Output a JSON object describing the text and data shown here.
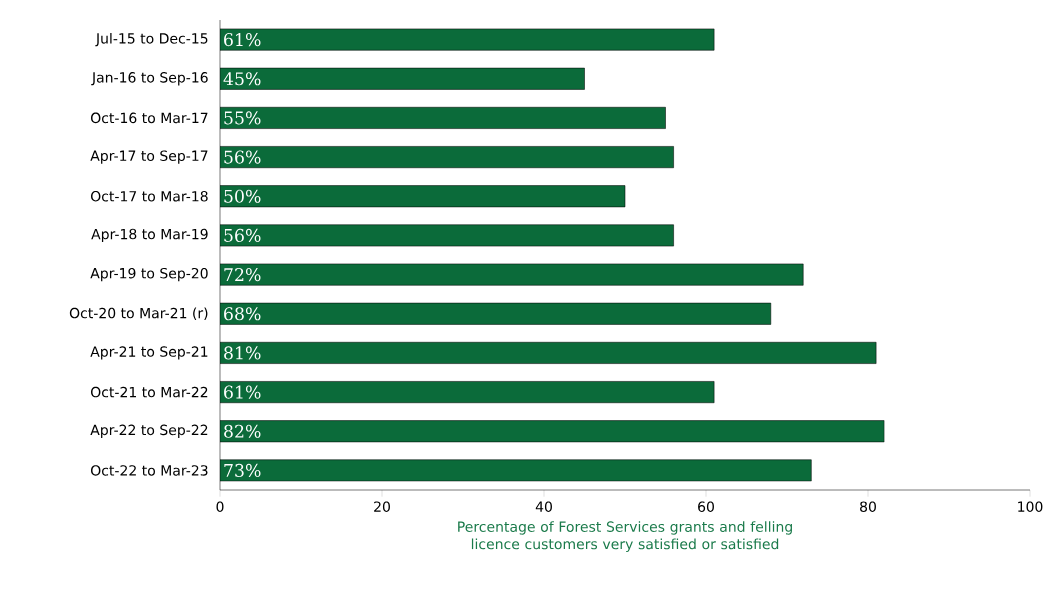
{
  "chart_data": {
    "type": "bar",
    "orientation": "horizontal",
    "categories": [
      "Jul-15 to Dec-15",
      "Jan-16 to Sep-16",
      "Oct-16 to Mar-17",
      "Apr-17 to Sep-17",
      "Oct-17 to Mar-18",
      "Apr-18 to Mar-19",
      "Apr-19 to Sep-20",
      "Oct-20 to Mar-21 (r)",
      "Apr-21 to Sep-21",
      "Oct-21 to Mar-22",
      "Apr-22 to Sep-22",
      "Oct-22 to Mar-23"
    ],
    "values": [
      61,
      45,
      55,
      56,
      50,
      56,
      72,
      68,
      81,
      61,
      82,
      73
    ],
    "value_labels": [
      "61%",
      "45%",
      "55%",
      "56%",
      "50%",
      "56%",
      "72%",
      "68%",
      "81%",
      "61%",
      "82%",
      "73%"
    ],
    "color": "#0b6b3a",
    "xlabel": "Percentage of Forest Services grants and felling licence customers very satisfied or satisfied",
    "xlim": [
      0,
      100
    ],
    "xticks": [
      0,
      20,
      40,
      60,
      80,
      100
    ],
    "grid": false
  }
}
